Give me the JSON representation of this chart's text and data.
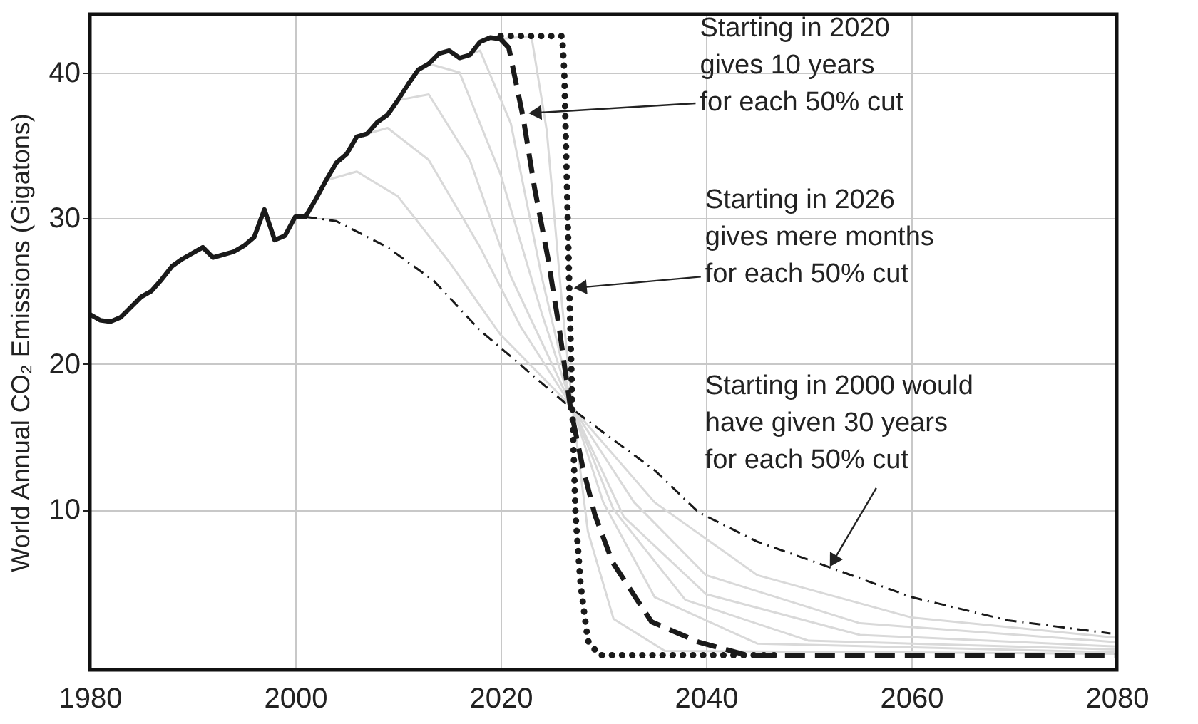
{
  "chart_data": {
    "type": "line",
    "ylabel": "World Annual CO₂ Emissions (Gigatons)",
    "xlim": [
      1980,
      2080
    ],
    "xticks": [
      1980,
      2000,
      2020,
      2040,
      2060,
      2080
    ],
    "ylim": [
      -1,
      44
    ],
    "yticks": [
      10,
      20,
      30,
      40
    ],
    "grid": true,
    "series": [
      {
        "color": "#d9d9d9",
        "line_style": "solid",
        "x": [
          2003,
          2006,
          2010,
          2015,
          2020,
          2027,
          2035,
          2045,
          2060,
          2080
        ],
        "values": [
          32.6,
          33.2,
          31.5,
          27,
          22,
          17,
          10.5,
          5.5,
          2.6,
          1.2
        ]
      },
      {
        "color": "#d9d9d9",
        "line_style": "solid",
        "x": [
          2006,
          2009,
          2013,
          2018,
          2022,
          2027,
          2033,
          2040,
          2055,
          2080
        ],
        "values": [
          35.6,
          36.2,
          34,
          28,
          22.5,
          17,
          10.5,
          5.5,
          2.2,
          0.9
        ]
      },
      {
        "color": "#d9d9d9",
        "line_style": "solid",
        "x": [
          2010,
          2013,
          2017,
          2021,
          2027,
          2032,
          2040,
          2055,
          2080
        ],
        "values": [
          38.1,
          38.5,
          34,
          26,
          17,
          9.5,
          4.2,
          1.4,
          0.6
        ]
      },
      {
        "color": "#d9d9d9",
        "line_style": "solid",
        "x": [
          2013,
          2016,
          2020,
          2024,
          2027,
          2031,
          2038,
          2050,
          2080
        ],
        "values": [
          40.6,
          40,
          33,
          23.5,
          17,
          10,
          3.8,
          1,
          0.4
        ]
      },
      {
        "color": "#d9d9d9",
        "line_style": "solid",
        "x": [
          2016,
          2018,
          2021,
          2024,
          2027,
          2030,
          2035,
          2045,
          2080
        ],
        "values": [
          41.0,
          41.5,
          36.5,
          26,
          17,
          10.5,
          4,
          0.8,
          0.2
        ]
      },
      {
        "color": "#d9d9d9",
        "line_style": "solid",
        "x": [
          2020,
          2023,
          2024.5,
          2026,
          2027,
          2028.5,
          2031,
          2036,
          2080
        ],
        "values": [
          42.3,
          42.5,
          36,
          24,
          17,
          8.5,
          2.5,
          0.3,
          0.1
        ]
      },
      {
        "color": "#1a1a1a",
        "line_style": "dashdot",
        "x": [
          2001,
          2004,
          2009,
          2013.5,
          2018,
          2021,
          2026.8,
          2030,
          2035,
          2039.3,
          2045,
          2051.8,
          2060,
          2069.4,
          2079.4
        ],
        "values": [
          30.1,
          29.8,
          28.0,
          25.7,
          22.3,
          20.5,
          17.0,
          15.3,
          12.7,
          9.8,
          7.8,
          6.1,
          4.0,
          2.4,
          1.5
        ]
      },
      {
        "color": "#1a1a1a",
        "line_style": "dashed",
        "x": [
          2020,
          2020.8,
          2022.2,
          2023.3,
          2024.6,
          2025.7,
          2026.8,
          2028,
          2029.2,
          2030.9,
          2033.3,
          2034.7,
          2039.3,
          2044,
          2080
        ],
        "values": [
          42.3,
          41.7,
          36.9,
          32.1,
          27.3,
          22.5,
          17,
          12.9,
          9.6,
          6.4,
          3.8,
          2.3,
          0.9,
          0,
          0
        ]
      },
      {
        "color": "#1a1a1a",
        "line_style": "dotted",
        "x": [
          2020,
          2026,
          2026.2,
          2026.7,
          2027,
          2027.3,
          2027.8,
          2028.5,
          2029.6,
          2047
        ],
        "values": [
          42.5,
          42.5,
          40.1,
          25,
          16.7,
          9.6,
          4.8,
          1,
          0,
          0
        ]
      },
      {
        "color": "#1a1a1a",
        "line_style": "solid",
        "x": [
          1980,
          1981,
          1982,
          1983,
          1984,
          1985,
          1986,
          1987,
          1988,
          1989,
          1990,
          1991,
          1992,
          1993,
          1994,
          1995,
          1996,
          1997,
          1998,
          1999,
          2000,
          2001,
          2002,
          2003,
          2004,
          2005,
          2006,
          2007,
          2008,
          2009,
          2010,
          2011,
          2012,
          2013,
          2014,
          2015,
          2016,
          2017,
          2018,
          2019,
          2020
        ],
        "values": [
          23.4,
          23.0,
          22.9,
          23.2,
          23.9,
          24.6,
          25.0,
          25.8,
          26.7,
          27.2,
          27.6,
          28.0,
          27.3,
          27.5,
          27.7,
          28.1,
          28.7,
          30.6,
          28.5,
          28.8,
          30.1,
          30.1,
          31.3,
          32.6,
          33.8,
          34.4,
          35.6,
          35.8,
          36.6,
          37.1,
          38.1,
          39.2,
          40.2,
          40.6,
          41.3,
          41.5,
          41.0,
          41.2,
          42.1,
          42.4,
          42.3
        ]
      }
    ],
    "annotations": [
      {
        "text": "Starting in 2020\ngives 10 years\nfor each 50% cut",
        "x": 2022.6,
        "y": 37.2
      },
      {
        "text": "Starting in 2026\ngives mere months\nfor each 50% cut",
        "x": 2027.0,
        "y": 25.2
      },
      {
        "text": "Starting in 2000 would\nhave given 30 years\nfor each 50% cut",
        "x": 2052.0,
        "y": 6.0
      }
    ]
  }
}
